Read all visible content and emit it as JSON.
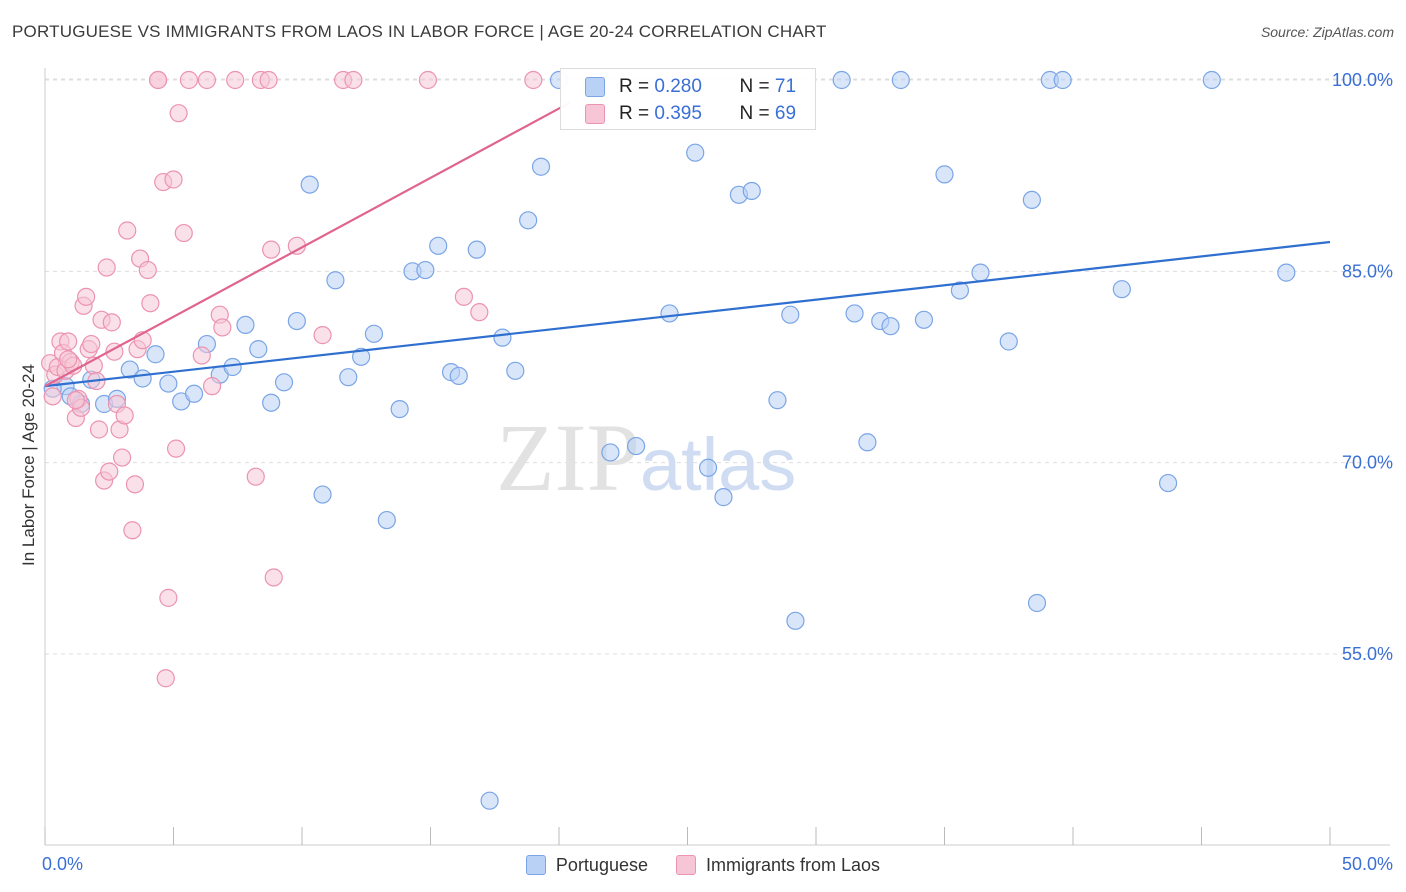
{
  "title": "PORTUGUESE VS IMMIGRANTS FROM LAOS IN LABOR FORCE | AGE 20-24 CORRELATION CHART",
  "source": "Source: ZipAtlas.com",
  "watermark": {
    "zip": "ZIP",
    "atlas": "atlas"
  },
  "stats": {
    "r_label": "R =",
    "n_label": "N =",
    "rows": [
      {
        "r": "0.280",
        "n": "71"
      },
      {
        "r": "0.395",
        "n": "69"
      }
    ]
  },
  "legend": [
    "Portuguese",
    "Immigrants from Laos"
  ],
  "colors": {
    "blue_fill": "#b9d1f5",
    "blue_stroke": "#7aa5e6",
    "blue_line": "#2f6fcf",
    "pink_fill": "#f6c6d6",
    "pink_stroke": "#ec93b1",
    "pink_line": "#e0648f",
    "axis_text": "#3a6fd6",
    "grid": "#dddddd"
  },
  "chart_data": {
    "type": "scatter",
    "title": "PORTUGUESE VS IMMIGRANTS FROM LAOS IN LABOR FORCE | AGE 20-24 CORRELATION CHART",
    "xlabel": "",
    "ylabel": "In Labor Force | Age 20-24",
    "xlim": [
      0,
      50
    ],
    "ylim": [
      42,
      101
    ],
    "x_tick_labels": [
      "0.0%",
      "50.0%"
    ],
    "y_ticks": [
      55,
      70,
      85,
      100
    ],
    "y_tick_labels": [
      "55.0%",
      "70.0%",
      "85.0%",
      "100.0%"
    ],
    "grid": true,
    "series": [
      {
        "name": "Portuguese",
        "color": "#7aa5e6",
        "trend": {
          "x": [
            0,
            50
          ],
          "y": [
            76.0,
            87.3
          ]
        },
        "points": [
          [
            0.8,
            76.0
          ],
          [
            1.0,
            75.2
          ],
          [
            1.4,
            74.6
          ],
          [
            1.8,
            76.5
          ],
          [
            2.3,
            74.6
          ],
          [
            2.8,
            75.0
          ],
          [
            3.3,
            77.3
          ],
          [
            3.8,
            76.6
          ],
          [
            4.3,
            78.5
          ],
          [
            4.8,
            76.2
          ],
          [
            5.3,
            74.8
          ],
          [
            5.8,
            75.4
          ],
          [
            6.3,
            79.3
          ],
          [
            6.8,
            76.9
          ],
          [
            7.3,
            77.5
          ],
          [
            7.8,
            80.8
          ],
          [
            8.3,
            78.9
          ],
          [
            8.8,
            74.7
          ],
          [
            9.3,
            76.3
          ],
          [
            9.8,
            81.1
          ],
          [
            10.3,
            91.8
          ],
          [
            10.8,
            67.5
          ],
          [
            11.3,
            84.3
          ],
          [
            11.8,
            76.7
          ],
          [
            12.3,
            78.3
          ],
          [
            12.8,
            80.1
          ],
          [
            13.3,
            65.5
          ],
          [
            13.8,
            74.2
          ],
          [
            14.3,
            85.0
          ],
          [
            14.8,
            85.1
          ],
          [
            15.3,
            87.0
          ],
          [
            15.8,
            77.1
          ],
          [
            16.1,
            76.8
          ],
          [
            16.8,
            86.7
          ],
          [
            17.3,
            43.5
          ],
          [
            17.8,
            79.8
          ],
          [
            18.3,
            77.2
          ],
          [
            18.8,
            89.0
          ],
          [
            19.3,
            93.2
          ],
          [
            20.0,
            100.0
          ],
          [
            22.0,
            70.8
          ],
          [
            23.0,
            71.3
          ],
          [
            24.3,
            81.7
          ],
          [
            25.3,
            94.3
          ],
          [
            25.8,
            69.6
          ],
          [
            26.4,
            67.3
          ],
          [
            27.0,
            91.0
          ],
          [
            27.5,
            91.3
          ],
          [
            28.5,
            74.9
          ],
          [
            29.0,
            81.6
          ],
          [
            29.2,
            57.6
          ],
          [
            31.0,
            100.0
          ],
          [
            31.5,
            81.7
          ],
          [
            32.0,
            71.6
          ],
          [
            32.5,
            81.1
          ],
          [
            32.9,
            80.7
          ],
          [
            33.3,
            100.0
          ],
          [
            34.2,
            81.2
          ],
          [
            35.0,
            92.6
          ],
          [
            35.6,
            83.5
          ],
          [
            36.4,
            84.9
          ],
          [
            37.5,
            79.5
          ],
          [
            38.4,
            90.6
          ],
          [
            38.6,
            59.0
          ],
          [
            39.1,
            100.0
          ],
          [
            39.6,
            100.0
          ],
          [
            41.9,
            83.6
          ],
          [
            43.7,
            68.4
          ],
          [
            45.4,
            100.0
          ],
          [
            48.3,
            84.9
          ],
          [
            0.3,
            75.8
          ]
        ]
      },
      {
        "name": "Immigrants from Laos",
        "color": "#ec93b1",
        "trend": {
          "x": [
            0,
            20.4
          ],
          "y": [
            76.0,
            98.2
          ]
        },
        "points": [
          [
            0.2,
            77.8
          ],
          [
            0.4,
            76.9
          ],
          [
            0.5,
            77.5
          ],
          [
            0.6,
            79.5
          ],
          [
            0.7,
            78.6
          ],
          [
            0.8,
            77.2
          ],
          [
            0.9,
            79.5
          ],
          [
            1.0,
            77.9
          ],
          [
            1.1,
            77.6
          ],
          [
            1.2,
            73.5
          ],
          [
            1.3,
            75.0
          ],
          [
            1.4,
            74.3
          ],
          [
            1.5,
            82.3
          ],
          [
            1.6,
            83.0
          ],
          [
            1.7,
            78.9
          ],
          [
            1.8,
            79.3
          ],
          [
            1.9,
            77.6
          ],
          [
            2.0,
            76.4
          ],
          [
            2.1,
            72.6
          ],
          [
            2.2,
            81.2
          ],
          [
            2.3,
            68.6
          ],
          [
            2.4,
            85.3
          ],
          [
            2.5,
            69.3
          ],
          [
            2.6,
            81.0
          ],
          [
            2.7,
            78.7
          ],
          [
            2.8,
            74.6
          ],
          [
            2.9,
            72.6
          ],
          [
            3.0,
            70.4
          ],
          [
            3.1,
            73.7
          ],
          [
            3.2,
            88.2
          ],
          [
            3.4,
            64.7
          ],
          [
            3.5,
            68.3
          ],
          [
            3.6,
            78.9
          ],
          [
            3.7,
            86.0
          ],
          [
            3.8,
            79.6
          ],
          [
            4.0,
            85.1
          ],
          [
            4.1,
            82.5
          ],
          [
            4.4,
            100.0
          ],
          [
            4.6,
            92.0
          ],
          [
            4.8,
            59.4
          ],
          [
            4.7,
            53.1
          ],
          [
            5.1,
            71.1
          ],
          [
            5.2,
            97.4
          ],
          [
            5.4,
            88.0
          ],
          [
            5.6,
            100.0
          ],
          [
            6.1,
            78.4
          ],
          [
            6.3,
            100.0
          ],
          [
            6.5,
            76.0
          ],
          [
            6.8,
            81.6
          ],
          [
            6.9,
            80.6
          ],
          [
            7.4,
            100.0
          ],
          [
            8.2,
            68.9
          ],
          [
            8.4,
            100.0
          ],
          [
            8.7,
            100.0
          ],
          [
            8.8,
            86.7
          ],
          [
            8.9,
            61.0
          ],
          [
            9.8,
            87.0
          ],
          [
            10.8,
            80.0
          ],
          [
            11.6,
            100.0
          ],
          [
            12.0,
            100.0
          ],
          [
            14.9,
            100.0
          ],
          [
            16.3,
            83.0
          ],
          [
            16.9,
            81.8
          ],
          [
            19.0,
            100.0
          ],
          [
            4.4,
            100.0
          ],
          [
            5.0,
            92.2
          ],
          [
            0.3,
            75.2
          ],
          [
            1.2,
            74.9
          ],
          [
            0.9,
            78.1
          ]
        ]
      }
    ]
  }
}
